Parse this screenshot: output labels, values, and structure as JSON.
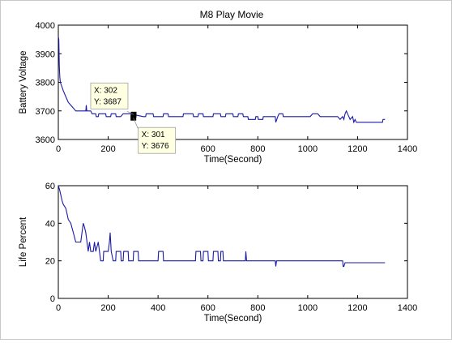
{
  "chart_data": [
    {
      "type": "line",
      "title": "M8 Play Movie",
      "xlabel": "Time(Second)",
      "ylabel": "Battery Voltage",
      "xlim": [
        0,
        1400
      ],
      "ylim": [
        3600,
        4000
      ],
      "xticks": [
        0,
        200,
        400,
        600,
        800,
        1000,
        1200,
        1400
      ],
      "yticks": [
        3600,
        3700,
        3800,
        3900,
        4000
      ],
      "grid": false,
      "line_color": "#1a1aa6",
      "series": [
        {
          "points": [
            [
              0,
              3960
            ],
            [
              2,
              3950
            ],
            [
              4,
              3860
            ],
            [
              6,
              3820
            ],
            [
              8,
              3800
            ],
            [
              12,
              3790
            ],
            [
              20,
              3770
            ],
            [
              30,
              3750
            ],
            [
              40,
              3730
            ],
            [
              50,
              3720
            ],
            [
              60,
              3710
            ],
            [
              70,
              3700
            ],
            [
              110,
              3700
            ],
            [
              112,
              3720
            ],
            [
              114,
              3700
            ],
            [
              130,
              3700
            ],
            [
              135,
              3690
            ],
            [
              150,
              3690
            ],
            [
              152,
              3680
            ],
            [
              160,
              3680
            ],
            [
              162,
              3690
            ],
            [
              190,
              3690
            ],
            [
              192,
              3680
            ],
            [
              210,
              3680
            ],
            [
              212,
              3690
            ],
            [
              230,
              3690
            ],
            [
              232,
              3680
            ],
            [
              250,
              3680
            ],
            [
              260,
              3690
            ],
            [
              300,
              3690
            ],
            [
              301,
              3676
            ],
            [
              302,
              3687
            ],
            [
              340,
              3680
            ],
            [
              350,
              3680
            ],
            [
              352,
              3690
            ],
            [
              380,
              3690
            ],
            [
              382,
              3680
            ],
            [
              420,
              3680
            ],
            [
              422,
              3690
            ],
            [
              440,
              3690
            ],
            [
              442,
              3680
            ],
            [
              500,
              3680
            ],
            [
              502,
              3690
            ],
            [
              540,
              3690
            ],
            [
              542,
              3680
            ],
            [
              560,
              3680
            ],
            [
              562,
              3690
            ],
            [
              580,
              3690
            ],
            [
              582,
              3680
            ],
            [
              620,
              3680
            ],
            [
              622,
              3690
            ],
            [
              650,
              3690
            ],
            [
              652,
              3680
            ],
            [
              670,
              3680
            ],
            [
              672,
              3690
            ],
            [
              700,
              3690
            ],
            [
              702,
              3680
            ],
            [
              720,
              3680
            ],
            [
              722,
              3690
            ],
            [
              740,
              3690
            ],
            [
              742,
              3680
            ],
            [
              760,
              3680
            ],
            [
              762,
              3670
            ],
            [
              790,
              3670
            ],
            [
              792,
              3680
            ],
            [
              800,
              3680
            ],
            [
              802,
              3670
            ],
            [
              820,
              3670
            ],
            [
              822,
              3680
            ],
            [
              870,
              3680
            ],
            [
              872,
              3660
            ],
            [
              876,
              3670
            ],
            [
              880,
              3680
            ],
            [
              885,
              3690
            ],
            [
              900,
              3690
            ],
            [
              902,
              3680
            ],
            [
              1010,
              3680
            ],
            [
              1020,
              3690
            ],
            [
              1040,
              3690
            ],
            [
              1050,
              3680
            ],
            [
              1120,
              3680
            ],
            [
              1130,
              3670
            ],
            [
              1140,
              3680
            ],
            [
              1145,
              3670
            ],
            [
              1150,
              3690
            ],
            [
              1155,
              3700
            ],
            [
              1160,
              3690
            ],
            [
              1165,
              3680
            ],
            [
              1170,
              3670
            ],
            [
              1180,
              3680
            ],
            [
              1185,
              3660
            ],
            [
              1190,
              3670
            ],
            [
              1195,
              3660
            ],
            [
              1210,
              3660
            ],
            [
              1300,
              3660
            ],
            [
              1302,
              3670
            ],
            [
              1310,
              3670
            ]
          ]
        }
      ],
      "annotations": [
        {
          "x_label": "X: 302",
          "y_label": "Y: 3687",
          "x": 302,
          "y": 3687
        },
        {
          "x_label": "X: 301",
          "y_label": "Y: 3676",
          "x": 301,
          "y": 3676
        }
      ]
    },
    {
      "type": "line",
      "title": "",
      "xlabel": "Time(Second)",
      "ylabel": "Life Percent",
      "xlim": [
        0,
        1400
      ],
      "ylim": [
        0,
        60
      ],
      "xticks": [
        0,
        200,
        400,
        600,
        800,
        1000,
        1200,
        1400
      ],
      "yticks": [
        0,
        20,
        40,
        60
      ],
      "grid": false,
      "line_color": "#1a1aa6",
      "series": [
        {
          "points": [
            [
              0,
              60
            ],
            [
              5,
              58
            ],
            [
              10,
              55
            ],
            [
              15,
              52
            ],
            [
              20,
              50
            ],
            [
              30,
              48
            ],
            [
              35,
              45
            ],
            [
              40,
              42
            ],
            [
              50,
              40
            ],
            [
              60,
              35
            ],
            [
              70,
              30
            ],
            [
              90,
              30
            ],
            [
              95,
              35
            ],
            [
              100,
              40
            ],
            [
              105,
              38
            ],
            [
              110,
              35
            ],
            [
              115,
              30
            ],
            [
              120,
              25
            ],
            [
              125,
              30
            ],
            [
              130,
              25
            ],
            [
              140,
              25
            ],
            [
              145,
              30
            ],
            [
              150,
              25
            ],
            [
              160,
              30
            ],
            [
              165,
              25
            ],
            [
              170,
              20
            ],
            [
              180,
              20
            ],
            [
              182,
              25
            ],
            [
              200,
              25
            ],
            [
              205,
              30
            ],
            [
              208,
              35
            ],
            [
              212,
              25
            ],
            [
              220,
              20
            ],
            [
              230,
              20
            ],
            [
              232,
              25
            ],
            [
              250,
              25
            ],
            [
              252,
              20
            ],
            [
              260,
              20
            ],
            [
              262,
              25
            ],
            [
              280,
              25
            ],
            [
              282,
              20
            ],
            [
              300,
              20
            ],
            [
              302,
              25
            ],
            [
              320,
              25
            ],
            [
              322,
              20
            ],
            [
              400,
              20
            ],
            [
              402,
              25
            ],
            [
              420,
              25
            ],
            [
              422,
              20
            ],
            [
              550,
              20
            ],
            [
              552,
              25
            ],
            [
              570,
              25
            ],
            [
              572,
              20
            ],
            [
              580,
              20
            ],
            [
              582,
              25
            ],
            [
              600,
              25
            ],
            [
              602,
              20
            ],
            [
              620,
              20
            ],
            [
              622,
              25
            ],
            [
              640,
              25
            ],
            [
              642,
              20
            ],
            [
              650,
              20
            ],
            [
              652,
              25
            ],
            [
              660,
              25
            ],
            [
              662,
              20
            ],
            [
              750,
              20
            ],
            [
              752,
              25
            ],
            [
              755,
              20
            ],
            [
              870,
              20
            ],
            [
              872,
              17
            ],
            [
              875,
              20
            ],
            [
              1140,
              20
            ],
            [
              1142,
              17
            ],
            [
              1145,
              17
            ],
            [
              1150,
              19
            ],
            [
              1310,
              19
            ]
          ]
        }
      ]
    }
  ]
}
